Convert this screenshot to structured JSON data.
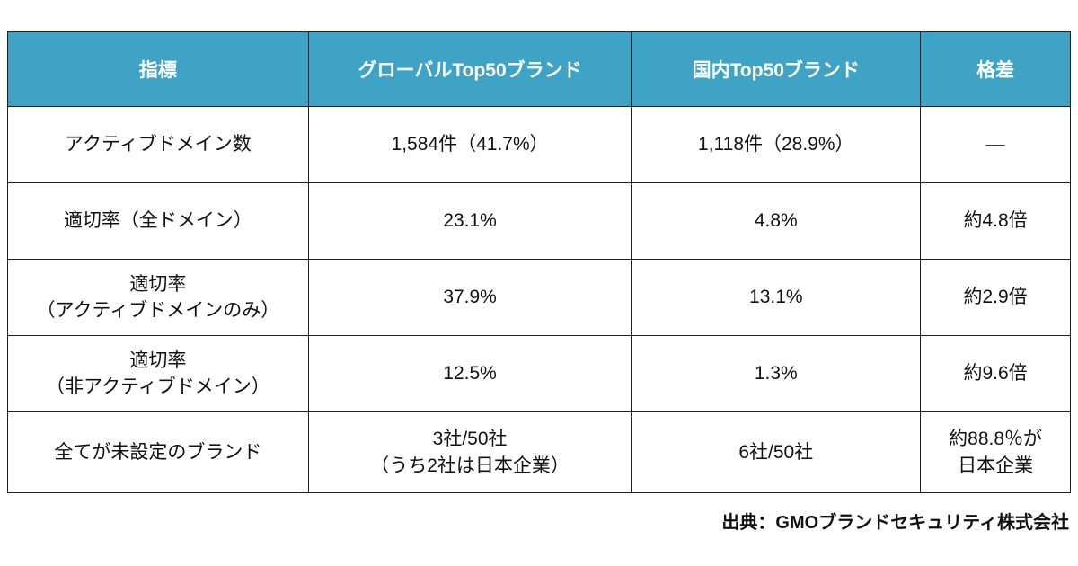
{
  "chart_data": {
    "type": "table",
    "title": "",
    "columns": [
      "指標",
      "グローバルTop50ブランド",
      "国内Top50ブランド",
      "格差"
    ],
    "rows": [
      [
        "アクティブドメイン数",
        "1,584件（41.7%）",
        "1,118件（28.9%）",
        "—"
      ],
      [
        "適切率（全ドメイン）",
        "23.1%",
        "4.8%",
        "約4.8倍"
      ],
      [
        "適切率\n（アクティブドメインのみ）",
        "37.9%",
        "13.1%",
        "約2.9倍"
      ],
      [
        "適切率\n（非アクティブドメイン）",
        "12.5%",
        "1.3%",
        "約9.6倍"
      ],
      [
        "全てが未設定のブランド",
        "3社/50社\n（うち2社は日本企業）",
        "6社/50社",
        "約88.8％が\n日本企業"
      ]
    ]
  },
  "source": "出典：GMOブランドセキュリティ株式会社",
  "colors": {
    "header_bg": "#3fa3c6",
    "header_text": "#ffffff",
    "border": "#1f1f1f",
    "cell_text": "#111111",
    "background": "#ffffff"
  }
}
